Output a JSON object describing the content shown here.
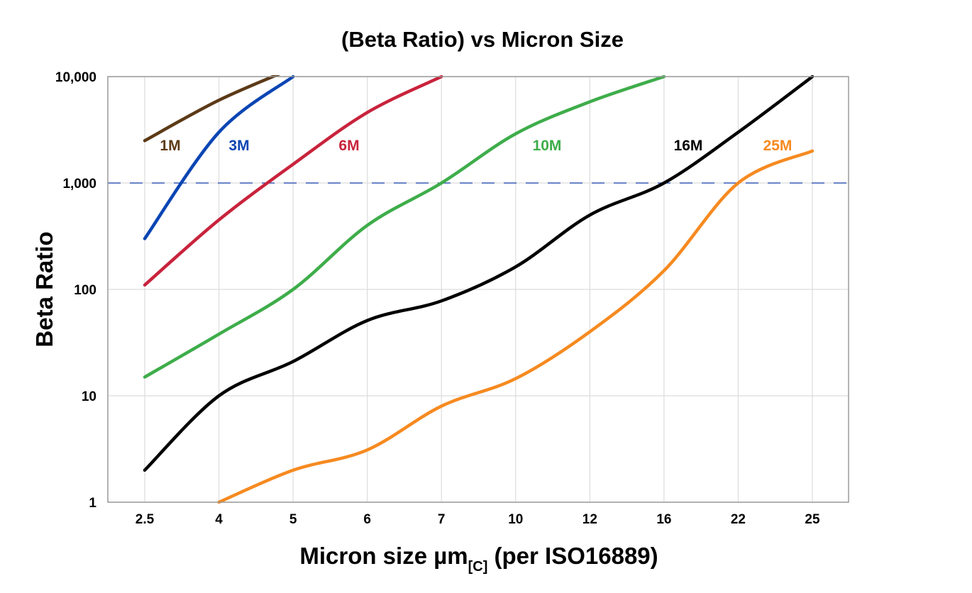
{
  "chart_data": {
    "type": "line",
    "title": "(Beta Ratio) vs Micron Size",
    "xlabel": {
      "main": "Micron size µm",
      "subscript": "[C]",
      "suffix": " (per ISO16889)"
    },
    "ylabel": "Beta Ratio",
    "y_scale": "log",
    "ylim": [
      1,
      10000
    ],
    "grid": true,
    "legend": "none (inline labels)",
    "categories": [
      "2.5",
      "4",
      "5",
      "6",
      "7",
      "10",
      "12",
      "16",
      "22",
      "25"
    ],
    "y_ticks": [
      {
        "value": 1,
        "label": "1"
      },
      {
        "value": 10,
        "label": "10"
      },
      {
        "value": 100,
        "label": "100"
      },
      {
        "value": 1000,
        "label": "1,000"
      },
      {
        "value": 10000,
        "label": "10,000"
      }
    ],
    "reference_line": {
      "value": 1000,
      "style": "dashed",
      "color": "#3a5fb5"
    },
    "series": [
      {
        "name": "1M",
        "color": "#5c3a17",
        "values": [
          2500,
          6000,
          12000,
          null,
          null,
          null,
          null,
          null,
          null,
          null
        ]
      },
      {
        "name": "3M",
        "color": "#0a45b3",
        "values": [
          300,
          3000,
          10000,
          null,
          null,
          null,
          null,
          null,
          null,
          null
        ]
      },
      {
        "name": "6M",
        "color": "#c8233c",
        "values": [
          110,
          450,
          1500,
          4600,
          10000,
          null,
          null,
          null,
          null,
          null
        ]
      },
      {
        "name": "10M",
        "color": "#3ead4a",
        "values": [
          15,
          38,
          100,
          400,
          1000,
          2900,
          5800,
          10000,
          null,
          null
        ]
      },
      {
        "name": "16M",
        "color": "#000000",
        "values": [
          2,
          10,
          21,
          51,
          78,
          163,
          500,
          1000,
          3000,
          10000
        ]
      },
      {
        "name": "25M",
        "color": "#f68a20",
        "values": [
          null,
          1,
          2,
          3.1,
          8,
          14.5,
          40,
          150,
          1000,
          2000
        ]
      }
    ]
  }
}
